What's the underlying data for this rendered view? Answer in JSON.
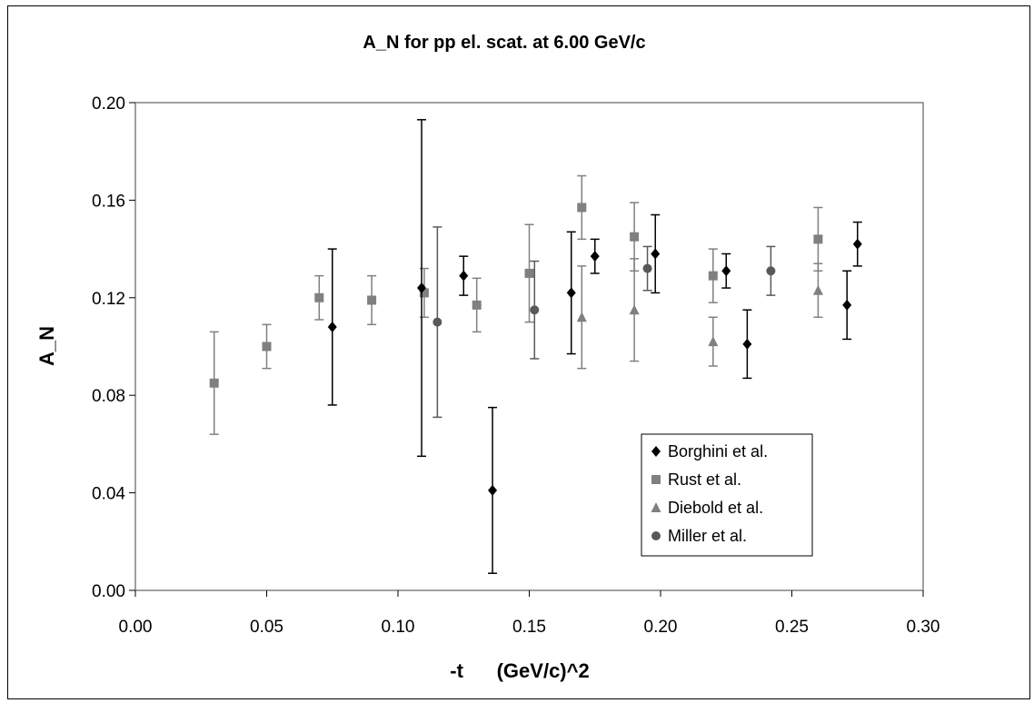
{
  "chart_data": {
    "type": "scatter",
    "title": "A_N for pp el. scat. at 6.00 GeV/c",
    "xlabel": "-t      (GeV/c)^2",
    "ylabel": "A_N",
    "xlim": [
      0.0,
      0.3
    ],
    "ylim": [
      0.0,
      0.2
    ],
    "x_ticks": [
      "0.00",
      "0.05",
      "0.10",
      "0.15",
      "0.20",
      "0.25",
      "0.30"
    ],
    "y_ticks": [
      "0.00",
      "0.04",
      "0.08",
      "0.12",
      "0.16",
      "0.20"
    ],
    "grid": false,
    "error_bars": true,
    "legend_position": "bottom-right",
    "series": [
      {
        "name": "Borghini et al.",
        "marker": "diamond",
        "color": "#000000",
        "points": [
          {
            "x": 0.075,
            "y": 0.108,
            "err": 0.032
          },
          {
            "x": 0.109,
            "y": 0.124,
            "err": 0.069
          },
          {
            "x": 0.125,
            "y": 0.129,
            "err": 0.008
          },
          {
            "x": 0.136,
            "y": 0.041,
            "err": 0.034
          },
          {
            "x": 0.166,
            "y": 0.122,
            "err": 0.025
          },
          {
            "x": 0.175,
            "y": 0.137,
            "err": 0.007
          },
          {
            "x": 0.198,
            "y": 0.138,
            "err": 0.016
          },
          {
            "x": 0.225,
            "y": 0.131,
            "err": 0.007
          },
          {
            "x": 0.233,
            "y": 0.101,
            "err": 0.014
          },
          {
            "x": 0.271,
            "y": 0.117,
            "err": 0.014
          },
          {
            "x": 0.275,
            "y": 0.142,
            "err": 0.009
          }
        ]
      },
      {
        "name": "Rust et al.",
        "marker": "square",
        "color": "#808080",
        "points": [
          {
            "x": 0.03,
            "y": 0.085,
            "err": 0.021
          },
          {
            "x": 0.05,
            "y": 0.1,
            "err": 0.009
          },
          {
            "x": 0.07,
            "y": 0.12,
            "err": 0.009
          },
          {
            "x": 0.09,
            "y": 0.119,
            "err": 0.01
          },
          {
            "x": 0.11,
            "y": 0.122,
            "err": 0.01
          },
          {
            "x": 0.13,
            "y": 0.117,
            "err": 0.011
          },
          {
            "x": 0.15,
            "y": 0.13,
            "err": 0.02
          },
          {
            "x": 0.17,
            "y": 0.157,
            "err": 0.013
          },
          {
            "x": 0.19,
            "y": 0.145,
            "err": 0.014
          },
          {
            "x": 0.22,
            "y": 0.129,
            "err": 0.011
          },
          {
            "x": 0.26,
            "y": 0.144,
            "err": 0.013
          }
        ]
      },
      {
        "name": "Diebold et al.",
        "marker": "triangle",
        "color": "#808080",
        "points": [
          {
            "x": 0.17,
            "y": 0.112,
            "err": 0.021
          },
          {
            "x": 0.19,
            "y": 0.115,
            "err": 0.021
          },
          {
            "x": 0.22,
            "y": 0.102,
            "err": 0.01
          },
          {
            "x": 0.26,
            "y": 0.123,
            "err": 0.011
          }
        ]
      },
      {
        "name": "Miller et al.",
        "marker": "circle",
        "color": "#595959",
        "points": [
          {
            "x": 0.115,
            "y": 0.11,
            "err": 0.039
          },
          {
            "x": 0.152,
            "y": 0.115,
            "err": 0.02
          },
          {
            "x": 0.195,
            "y": 0.132,
            "err": 0.009
          },
          {
            "x": 0.242,
            "y": 0.131,
            "err": 0.01
          }
        ]
      }
    ]
  }
}
